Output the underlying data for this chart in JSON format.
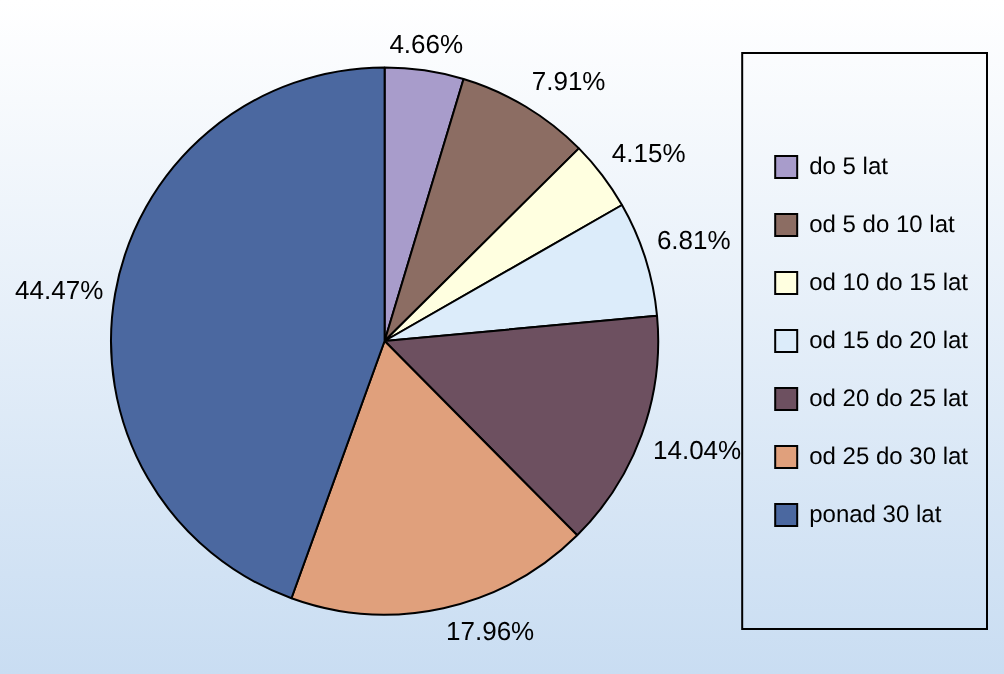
{
  "chart_data": {
    "type": "pie",
    "categories": [
      "do 5 lat",
      "od 5 do 10 lat",
      "od 10 do 15 lat",
      "od 15 do 20 lat",
      "od 20 do 25 lat",
      "od 25 do 30 lat",
      "ponad 30 lat"
    ],
    "values": [
      4.66,
      7.91,
      4.15,
      6.81,
      14.04,
      17.96,
      44.47
    ],
    "value_labels": [
      "4.66%",
      "7.91%",
      "4.15%",
      "6.81%",
      "14.04%",
      "17.96%",
      "44.47%"
    ],
    "colors": [
      "#a89ccb",
      "#8c6d63",
      "#ffffe0",
      "#dcecfa",
      "#6d5060",
      "#e0a07c",
      "#4b68a0"
    ],
    "legend": "right"
  }
}
